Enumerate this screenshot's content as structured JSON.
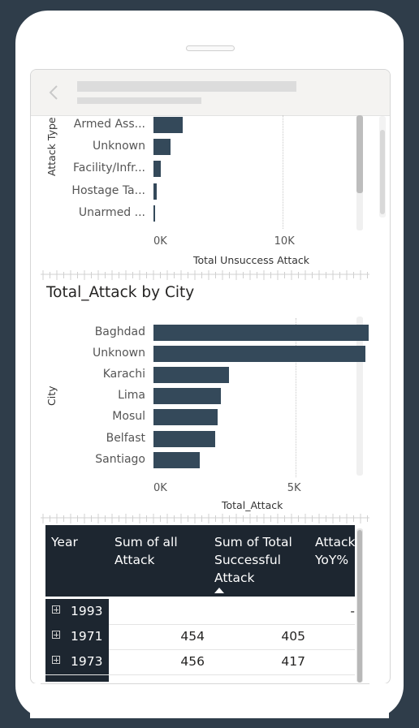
{
  "chart_data": [
    {
      "type": "bar",
      "orientation": "horizontal",
      "title": "",
      "ylabel": "Attack Type",
      "xlabel": "Total Unsuccess Attack",
      "categories": [
        "Armed Ass...",
        "Unknown",
        "Facility/Infr...",
        "Hostage Ta...",
        "Unarmed ..."
      ],
      "values": [
        2300,
        1300,
        560,
        260,
        120
      ],
      "xticks": [
        "0K",
        "10K"
      ],
      "xlim": [
        0,
        15000
      ],
      "grid": true
    },
    {
      "type": "bar",
      "orientation": "horizontal",
      "title": "Total_Attack by City",
      "ylabel": "City",
      "xlabel": "Total_Attack",
      "categories": [
        "Baghdad",
        "Unknown",
        "Karachi",
        "Lima",
        "Mosul",
        "Belfast",
        "Santiago"
      ],
      "values": [
        7590,
        7470,
        2650,
        2380,
        2270,
        2180,
        1620
      ],
      "xticks": [
        "0K",
        "5K"
      ],
      "xlim": [
        0,
        8500
      ],
      "grid": true
    }
  ],
  "table": {
    "headers": {
      "year": "Year",
      "sum_all": "Sum of all Attack",
      "sum_success": "Sum of Total Successful Attack",
      "yoy": "Attack YoY%"
    },
    "rows": [
      {
        "year": "1993",
        "sum_all": "",
        "sum_success": "",
        "yoy": "-"
      },
      {
        "year": "1971",
        "sum_all": "454",
        "sum_success": "405",
        "yoy": ""
      },
      {
        "year": "1973",
        "sum_all": "456",
        "sum_success": "417",
        "yoy": ""
      }
    ]
  },
  "colors": {
    "bar": "#34495a",
    "table_header": "#1d2630",
    "background": "#2f3d4a"
  }
}
